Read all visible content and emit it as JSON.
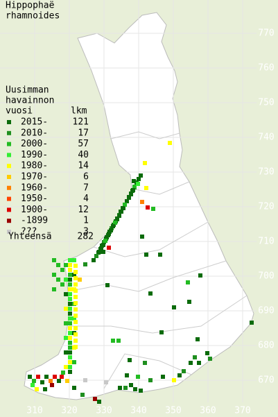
{
  "title": [
    "Hippophaë",
    "rhamnoides"
  ],
  "legend": {
    "heading": [
      "Uusimman",
      "havainnon",
      "vuosi"
    ],
    "count_heading": "lkm",
    "entries": [
      {
        "label": "2015-",
        "count": 121,
        "color": "#0b6b0b"
      },
      {
        "label": "2010-",
        "count": 17,
        "color": "#1f8f1f"
      },
      {
        "label": "2000-",
        "count": 57,
        "color": "#22bb22"
      },
      {
        "label": "1990-",
        "count": 40,
        "color": "#33ee33"
      },
      {
        "label": "1980-",
        "count": 14,
        "color": "#ffff00"
      },
      {
        "label": "1970-",
        "count": 6,
        "color": "#ffcc00"
      },
      {
        "label": "1960-",
        "count": 7,
        "color": "#ff8000"
      },
      {
        "label": "1950-",
        "count": 4,
        "color": "#ff4400"
      },
      {
        "label": "1900-",
        "count": 12,
        "color": "#dd0000"
      },
      {
        "label": "-1899",
        "count": 1,
        "color": "#990000"
      },
      {
        "label": "???",
        "count": 3,
        "color": "#c8c8c8"
      }
    ],
    "total": {
      "label": "Yhteensä",
      "value": 282
    }
  },
  "y_ticks": [
    770,
    760,
    750,
    740,
    730,
    720,
    710,
    700,
    690,
    680,
    670
  ],
  "x_ticks": [
    310,
    320,
    330,
    340,
    350,
    360,
    370
  ]
}
